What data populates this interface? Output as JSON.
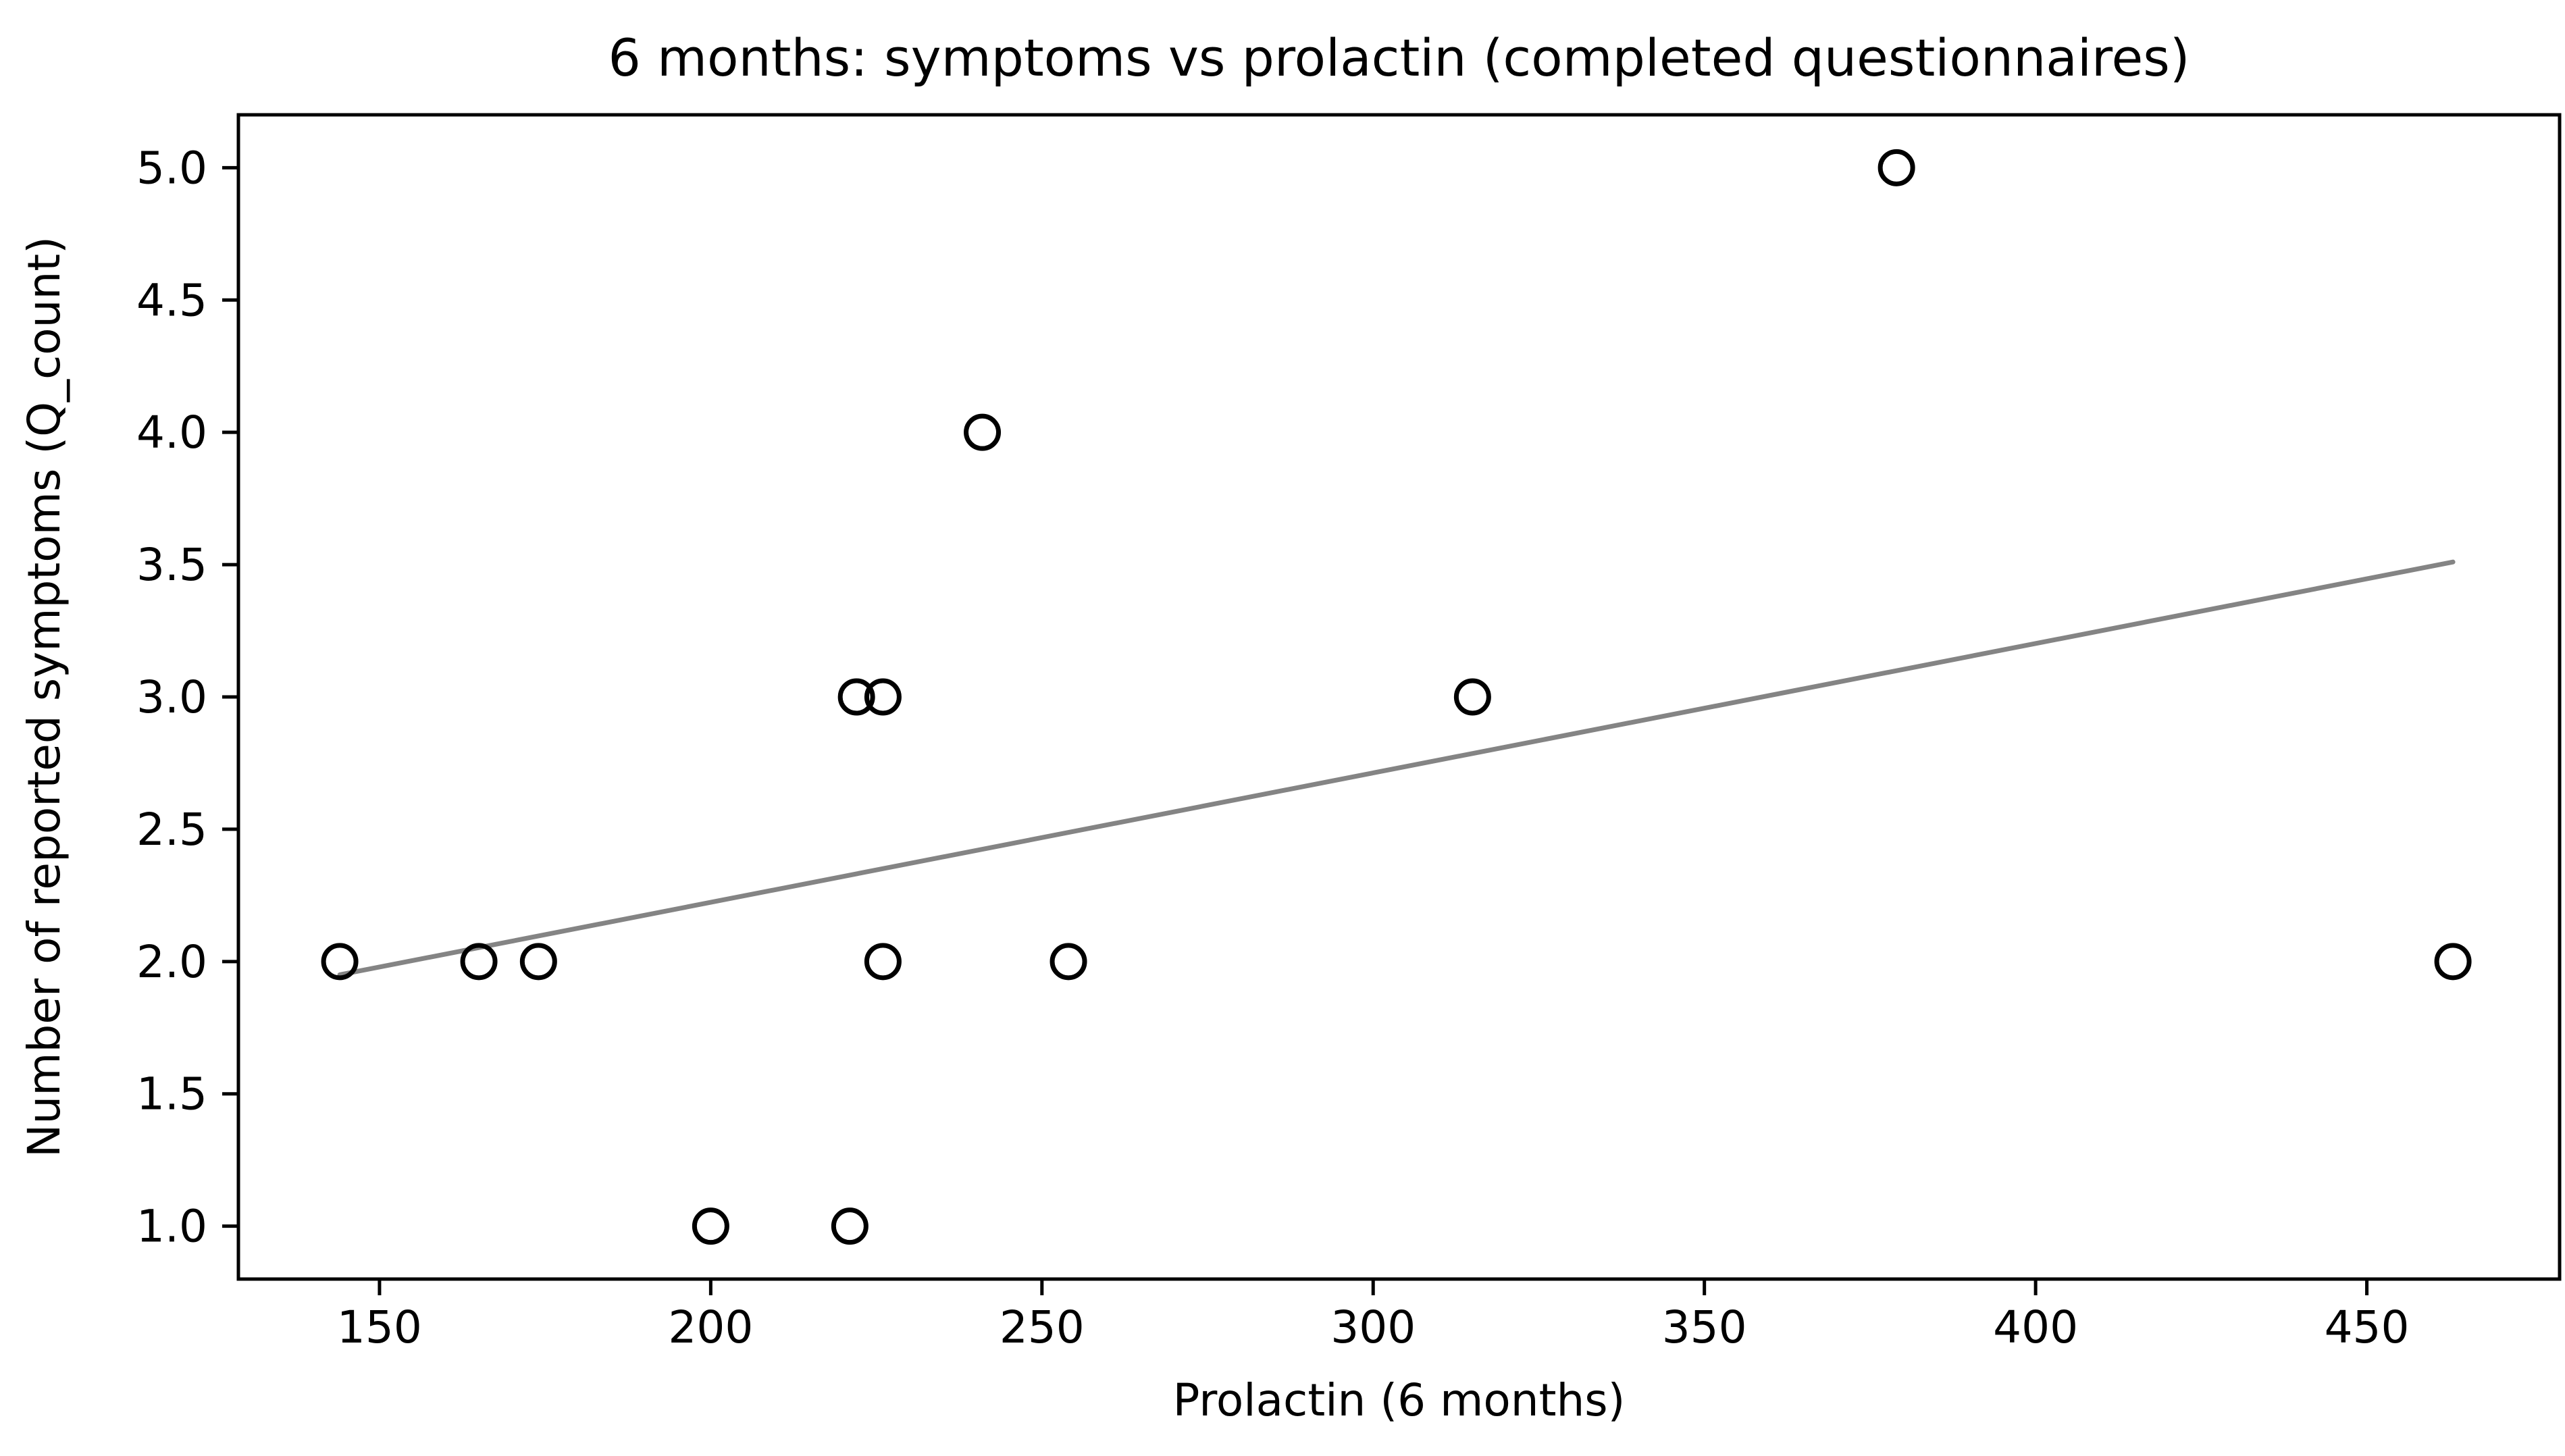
{
  "figure": {
    "background_color": "#ffffff",
    "spine_color": "#000000",
    "text_color": "#000000"
  },
  "chart_data": {
    "type": "scatter",
    "title": "6 months: symptoms vs prolactin (completed questionnaires)",
    "xlabel": "Prolactin (6 months)",
    "ylabel": "Number of reported symptoms (Q_count)",
    "points": [
      [
        144,
        2
      ],
      [
        165,
        2
      ],
      [
        174,
        2
      ],
      [
        200,
        1
      ],
      [
        221,
        1
      ],
      [
        222,
        3
      ],
      [
        226,
        3
      ],
      [
        226,
        2
      ],
      [
        241,
        4
      ],
      [
        254,
        2
      ],
      [
        315,
        3
      ],
      [
        379,
        5
      ],
      [
        463,
        2
      ]
    ],
    "trend_line": {
      "x_start": 144,
      "y_start": 1.95,
      "x_end": 463,
      "y_end": 3.51,
      "color": "#848484"
    },
    "x_ticks": [
      150,
      200,
      250,
      300,
      350,
      400,
      450
    ],
    "y_ticks": [
      1.0,
      1.5,
      2.0,
      2.5,
      3.0,
      3.5,
      4.0,
      4.5,
      5.0
    ],
    "xlim": [
      128.7,
      479.1
    ],
    "ylim": [
      0.8,
      5.2
    ],
    "grid": false,
    "legend": null,
    "marker": {
      "style": "circle-open",
      "edge_color": "#000000"
    }
  }
}
